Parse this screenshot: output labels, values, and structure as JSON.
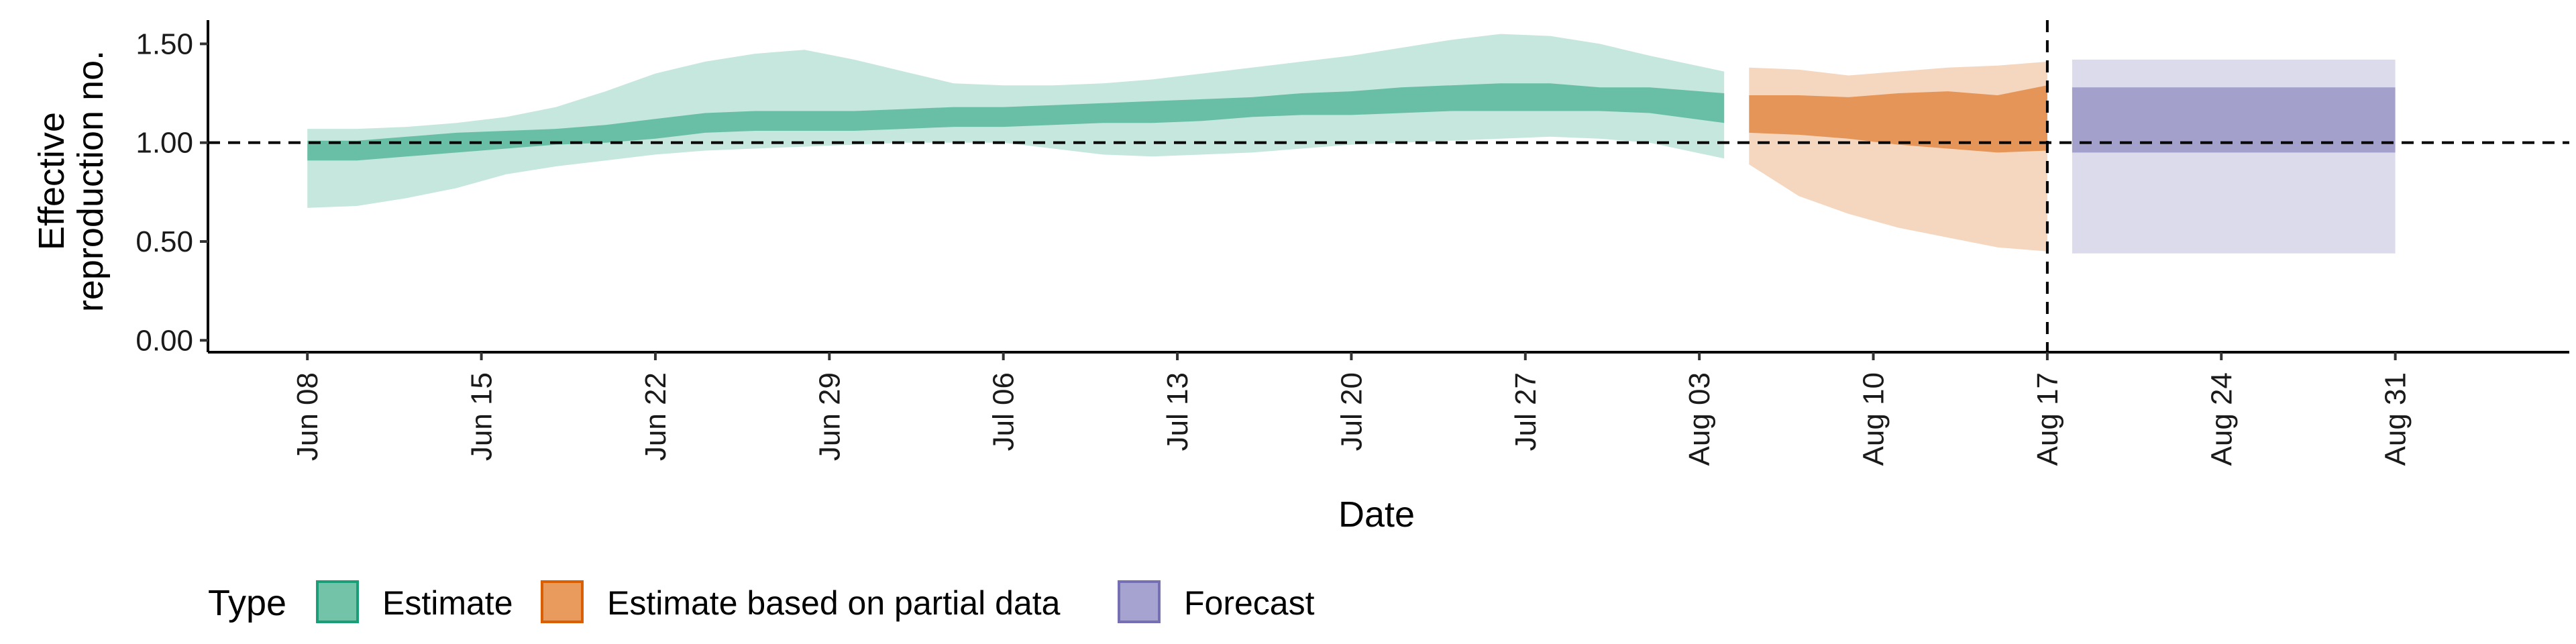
{
  "chart_data": {
    "type": "area",
    "title": "",
    "xlabel": "Date",
    "ylabel_lines": [
      "Effective",
      "reproduction no."
    ],
    "x_ticks": [
      "Jun 08",
      "Jun 15",
      "Jun 22",
      "Jun 29",
      "Jul 06",
      "Jul 13",
      "Jul 20",
      "Jul 27",
      "Aug 03",
      "Aug 10",
      "Aug 17",
      "Aug 24",
      "Aug 31"
    ],
    "y_ticks": [
      "0.00",
      "0.50",
      "1.00",
      "1.50"
    ],
    "x_range": [
      "2020-06-04",
      "2020-09-07"
    ],
    "ylim": [
      -0.06,
      1.62
    ],
    "reference_hline": 1.0,
    "reference_vline": "2020-08-17",
    "legend": {
      "title": "Type",
      "position": "bottom-left",
      "entries": [
        {
          "label": "Estimate",
          "fill": "#72c3a7",
          "stroke": "#1b9e77"
        },
        {
          "label": "Estimate based on partial data",
          "fill": "#e99b5e",
          "stroke": "#d95f02"
        },
        {
          "label": "Forecast",
          "fill": "#a7a3d1",
          "stroke": "#7570b3"
        }
      ]
    },
    "series": [
      {
        "name": "Estimate",
        "color": "#1b9e77",
        "x": [
          "2020-06-08",
          "2020-06-10",
          "2020-06-12",
          "2020-06-14",
          "2020-06-16",
          "2020-06-18",
          "2020-06-20",
          "2020-06-22",
          "2020-06-24",
          "2020-06-26",
          "2020-06-28",
          "2020-06-30",
          "2020-07-02",
          "2020-07-04",
          "2020-07-06",
          "2020-07-08",
          "2020-07-10",
          "2020-07-12",
          "2020-07-14",
          "2020-07-16",
          "2020-07-18",
          "2020-07-20",
          "2020-07-22",
          "2020-07-24",
          "2020-07-26",
          "2020-07-28",
          "2020-07-30",
          "2020-08-01",
          "2020-08-04"
        ],
        "lower90": [
          0.67,
          0.68,
          0.72,
          0.77,
          0.84,
          0.88,
          0.91,
          0.94,
          0.96,
          0.97,
          0.98,
          0.99,
          1.0,
          1.0,
          1.0,
          0.97,
          0.94,
          0.93,
          0.94,
          0.95,
          0.97,
          0.99,
          1.0,
          1.01,
          1.02,
          1.03,
          1.02,
          1.0,
          0.92
        ],
        "upper90": [
          1.07,
          1.07,
          1.08,
          1.1,
          1.13,
          1.18,
          1.26,
          1.35,
          1.41,
          1.45,
          1.47,
          1.42,
          1.36,
          1.3,
          1.29,
          1.29,
          1.3,
          1.32,
          1.35,
          1.38,
          1.41,
          1.44,
          1.48,
          1.52,
          1.55,
          1.54,
          1.5,
          1.44,
          1.36
        ],
        "lower50": [
          0.91,
          0.91,
          0.93,
          0.95,
          0.97,
          0.99,
          1.0,
          1.02,
          1.05,
          1.06,
          1.06,
          1.06,
          1.07,
          1.08,
          1.08,
          1.09,
          1.1,
          1.1,
          1.11,
          1.13,
          1.14,
          1.14,
          1.15,
          1.16,
          1.16,
          1.16,
          1.16,
          1.15,
          1.1
        ],
        "upper50": [
          1.01,
          1.01,
          1.03,
          1.05,
          1.06,
          1.07,
          1.09,
          1.12,
          1.15,
          1.16,
          1.16,
          1.16,
          1.17,
          1.18,
          1.18,
          1.19,
          1.2,
          1.21,
          1.22,
          1.23,
          1.25,
          1.26,
          1.28,
          1.29,
          1.3,
          1.3,
          1.28,
          1.28,
          1.25
        ]
      },
      {
        "name": "Estimate based on partial data",
        "color": "#d95f02",
        "x": [
          "2020-08-05",
          "2020-08-07",
          "2020-08-09",
          "2020-08-11",
          "2020-08-13",
          "2020-08-15",
          "2020-08-17"
        ],
        "lower90": [
          0.89,
          0.73,
          0.64,
          0.57,
          0.52,
          0.47,
          0.45
        ],
        "upper90": [
          1.38,
          1.37,
          1.34,
          1.36,
          1.38,
          1.39,
          1.41
        ],
        "lower50": [
          1.05,
          1.04,
          1.02,
          0.99,
          0.97,
          0.95,
          0.96
        ],
        "upper50": [
          1.24,
          1.24,
          1.23,
          1.25,
          1.26,
          1.24,
          1.29
        ]
      },
      {
        "name": "Forecast",
        "color": "#7570b3",
        "x": [
          "2020-08-18",
          "2020-08-31"
        ],
        "lower90": [
          0.44,
          0.44
        ],
        "upper90": [
          1.42,
          1.42
        ],
        "lower50": [
          0.95,
          0.95
        ],
        "upper50": [
          1.28,
          1.28
        ]
      }
    ]
  }
}
